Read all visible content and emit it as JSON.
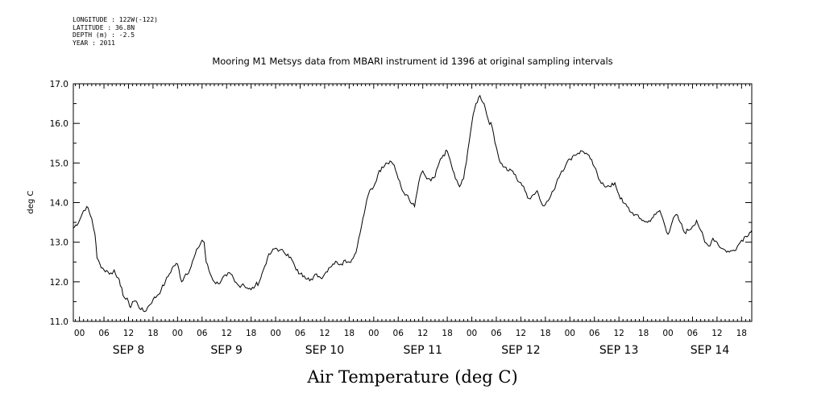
{
  "header": {
    "longitude": "LONGITUDE : 122W(-122)",
    "latitude": "LATITUDE : 36.8N",
    "depth": "DEPTH (m) : -2.5",
    "year": "YEAR : 2011"
  },
  "chart_data": {
    "type": "line",
    "title": "Mooring M1 Metsys data from MBARI instrument id 1396 at original sampling intervals",
    "xlabel": "Air Temperature (deg C)",
    "ylabel": "deg C",
    "ylim": [
      11.0,
      17.0
    ],
    "yticks": [
      "11.0",
      "12.0",
      "13.0",
      "14.0",
      "15.0",
      "16.0",
      "17.0"
    ],
    "x_unit": "hours from 2011-09-08 00:00",
    "xlim": [
      -1.5,
      164.5
    ],
    "hour_ticks": [
      "00",
      "06",
      "12",
      "18"
    ],
    "day_labels": [
      "SEP  8",
      "SEP  9",
      "SEP 10",
      "SEP 11",
      "SEP 12",
      "SEP 13",
      "SEP 14"
    ],
    "series": [
      {
        "values": [
          [
            -1.5,
            13.35
          ],
          [
            0,
            13.55
          ],
          [
            1,
            13.8
          ],
          [
            1.8,
            13.9
          ],
          [
            3,
            13.6
          ],
          [
            3.8,
            13.2
          ],
          [
            4.3,
            12.6
          ],
          [
            5,
            12.45
          ],
          [
            6,
            12.3
          ],
          [
            7,
            12.25
          ],
          [
            8,
            12.2
          ],
          [
            8.5,
            12.3
          ],
          [
            9.5,
            12.1
          ],
          [
            10,
            11.9
          ],
          [
            11,
            11.6
          ],
          [
            12,
            11.5
          ],
          [
            12.5,
            11.35
          ],
          [
            13,
            11.5
          ],
          [
            14,
            11.5
          ],
          [
            15,
            11.3
          ],
          [
            16,
            11.25
          ],
          [
            17,
            11.4
          ],
          [
            18,
            11.55
          ],
          [
            19,
            11.65
          ],
          [
            20,
            11.8
          ],
          [
            21,
            12.0
          ],
          [
            22,
            12.2
          ],
          [
            23,
            12.4
          ],
          [
            24,
            12.45
          ],
          [
            25,
            12.0
          ],
          [
            26,
            12.2
          ],
          [
            27,
            12.3
          ],
          [
            28,
            12.6
          ],
          [
            29,
            12.85
          ],
          [
            30,
            13.05
          ],
          [
            30.5,
            13.0
          ],
          [
            31,
            12.5
          ],
          [
            32,
            12.2
          ],
          [
            33,
            12.0
          ],
          [
            34,
            11.95
          ],
          [
            35,
            12.1
          ],
          [
            36,
            12.15
          ],
          [
            37,
            12.2
          ],
          [
            38,
            12.0
          ],
          [
            39,
            11.9
          ],
          [
            40,
            11.95
          ],
          [
            41,
            11.85
          ],
          [
            42,
            11.8
          ],
          [
            43,
            11.9
          ],
          [
            44,
            12.0
          ],
          [
            45,
            12.3
          ],
          [
            46,
            12.6
          ],
          [
            47,
            12.75
          ],
          [
            48,
            12.85
          ],
          [
            49,
            12.8
          ],
          [
            50,
            12.75
          ],
          [
            51,
            12.7
          ],
          [
            52,
            12.55
          ],
          [
            53,
            12.3
          ],
          [
            54,
            12.2
          ],
          [
            55,
            12.15
          ],
          [
            56,
            12.1
          ],
          [
            57,
            12.05
          ],
          [
            58,
            12.2
          ],
          [
            59,
            12.1
          ],
          [
            60,
            12.2
          ],
          [
            61,
            12.35
          ],
          [
            62,
            12.45
          ],
          [
            63,
            12.5
          ],
          [
            64,
            12.45
          ],
          [
            65,
            12.55
          ],
          [
            66,
            12.5
          ],
          [
            67,
            12.6
          ],
          [
            68,
            12.9
          ],
          [
            69,
            13.4
          ],
          [
            70,
            13.9
          ],
          [
            71,
            14.3
          ],
          [
            72,
            14.4
          ],
          [
            73,
            14.7
          ],
          [
            74,
            14.9
          ],
          [
            75,
            15.0
          ],
          [
            76,
            15.05
          ],
          [
            77,
            14.95
          ],
          [
            78,
            14.6
          ],
          [
            79,
            14.3
          ],
          [
            80,
            14.2
          ],
          [
            81,
            14.0
          ],
          [
            82,
            13.9
          ],
          [
            83,
            14.5
          ],
          [
            84,
            14.8
          ],
          [
            85,
            14.6
          ],
          [
            86,
            14.55
          ],
          [
            87,
            14.65
          ],
          [
            88,
            15.0
          ],
          [
            89,
            15.2
          ],
          [
            90,
            15.3
          ],
          [
            91,
            14.95
          ],
          [
            92,
            14.6
          ],
          [
            93,
            14.4
          ],
          [
            94,
            14.6
          ],
          [
            95,
            15.3
          ],
          [
            96,
            16.0
          ],
          [
            97,
            16.5
          ],
          [
            98,
            16.7
          ],
          [
            99,
            16.5
          ],
          [
            100,
            16.1
          ],
          [
            101,
            15.9
          ],
          [
            102,
            15.4
          ],
          [
            103,
            15.0
          ],
          [
            104,
            14.9
          ],
          [
            105,
            14.8
          ],
          [
            106,
            14.8
          ],
          [
            107,
            14.6
          ],
          [
            108,
            14.5
          ],
          [
            109,
            14.3
          ],
          [
            110,
            14.1
          ],
          [
            111,
            14.2
          ],
          [
            112,
            14.3
          ],
          [
            113,
            14.0
          ],
          [
            114,
            13.95
          ],
          [
            115,
            14.1
          ],
          [
            116,
            14.3
          ],
          [
            117,
            14.6
          ],
          [
            118,
            14.8
          ],
          [
            119,
            14.95
          ],
          [
            120,
            15.1
          ],
          [
            121,
            15.2
          ],
          [
            122,
            15.25
          ],
          [
            123,
            15.3
          ],
          [
            124,
            15.25
          ],
          [
            125,
            15.1
          ],
          [
            126,
            14.9
          ],
          [
            127,
            14.6
          ],
          [
            128,
            14.5
          ],
          [
            129,
            14.4
          ],
          [
            130,
            14.4
          ],
          [
            131,
            14.5
          ],
          [
            132,
            14.2
          ],
          [
            133,
            14.0
          ],
          [
            134,
            13.9
          ],
          [
            135,
            13.75
          ],
          [
            136,
            13.7
          ],
          [
            137,
            13.6
          ],
          [
            138,
            13.55
          ],
          [
            139,
            13.5
          ],
          [
            140,
            13.6
          ],
          [
            141,
            13.7
          ],
          [
            142,
            13.8
          ],
          [
            143,
            13.5
          ],
          [
            144,
            13.2
          ],
          [
            145,
            13.5
          ],
          [
            146,
            13.7
          ],
          [
            147,
            13.5
          ],
          [
            148,
            13.25
          ],
          [
            149,
            13.3
          ],
          [
            150,
            13.4
          ],
          [
            151,
            13.55
          ],
          [
            152,
            13.3
          ],
          [
            153,
            13.0
          ],
          [
            154,
            12.9
          ],
          [
            155,
            13.1
          ],
          [
            156,
            13.0
          ],
          [
            157,
            12.85
          ],
          [
            158,
            12.8
          ],
          [
            159,
            12.75
          ],
          [
            160,
            12.8
          ],
          [
            161,
            12.9
          ],
          [
            162,
            13.05
          ],
          [
            163,
            13.15
          ],
          [
            164,
            13.25
          ],
          [
            164.5,
            13.3
          ]
        ]
      }
    ]
  }
}
